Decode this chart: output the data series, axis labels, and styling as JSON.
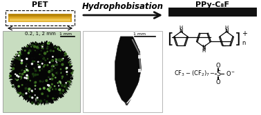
{
  "title_pet": "PET",
  "title_ppy": "PPy-C₈F",
  "hydro_text": "Hydrophobisation",
  "dim_label": "0.2, 1, 2 mm",
  "scale_bar_marble": "1 mm",
  "scale_bar_crystal": "1 mm",
  "pet_color_top": "#b8860b",
  "pet_color_main": "#daa520",
  "pet_color_light": "#f5d060",
  "ppy_bar_color": "#111111",
  "bg_color": "#ffffff",
  "arrow_color": "#111111",
  "marble_bg": "#c8ddc0",
  "crystal_bg": "#ffffff"
}
